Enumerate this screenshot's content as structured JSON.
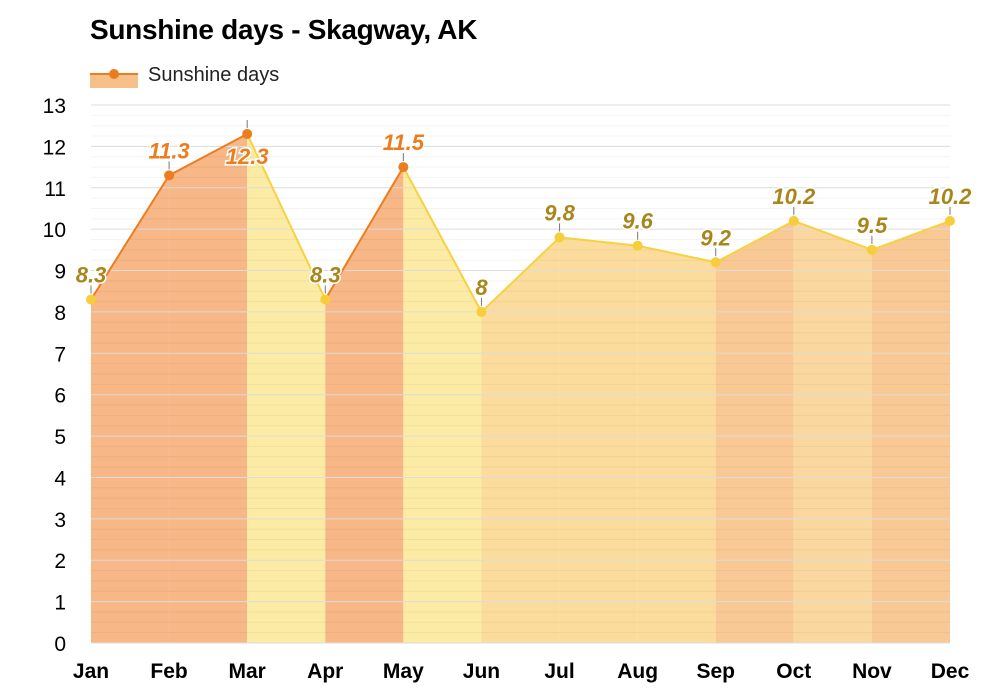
{
  "title": "Sunshine days - Skagway, AK",
  "legend": {
    "label": "Sunshine days",
    "icon": "line-marker-icon"
  },
  "colors": {
    "high_line": "#ec7d1f",
    "high_fill": "#f7b786",
    "low_line": "#f7d23e",
    "low_fill": "#fae4a0",
    "mid_fill": "#f9cf97",
    "high_label": "#ec7d1f",
    "low_label": "#a9861b",
    "grid": "#e4e4e4"
  },
  "chart_data": {
    "type": "area",
    "title": "Sunshine days - Skagway, AK",
    "xlabel": "",
    "ylabel": "",
    "categories": [
      "Jan",
      "Feb",
      "Mar",
      "Apr",
      "May",
      "Jun",
      "Jul",
      "Aug",
      "Sep",
      "Oct",
      "Nov",
      "Dec"
    ],
    "series": [
      {
        "name": "Sunshine days",
        "values": [
          8.3,
          11.3,
          12.3,
          8.3,
          11.5,
          8,
          9.8,
          9.6,
          9.2,
          10.2,
          9.5,
          10.2
        ],
        "labels": [
          "8.3",
          "11.3",
          "12.3",
          "8.3",
          "11.5",
          "8",
          "9.8",
          "9.6",
          "9.2",
          "10.2",
          "9.5",
          "10.2"
        ]
      }
    ],
    "ylim": [
      0,
      13
    ],
    "yticks": [
      "0",
      "1",
      "2",
      "3",
      "4",
      "5",
      "6",
      "7",
      "8",
      "9",
      "10",
      "11",
      "12",
      "13"
    ],
    "grid": true,
    "legend_position": "top-left"
  }
}
